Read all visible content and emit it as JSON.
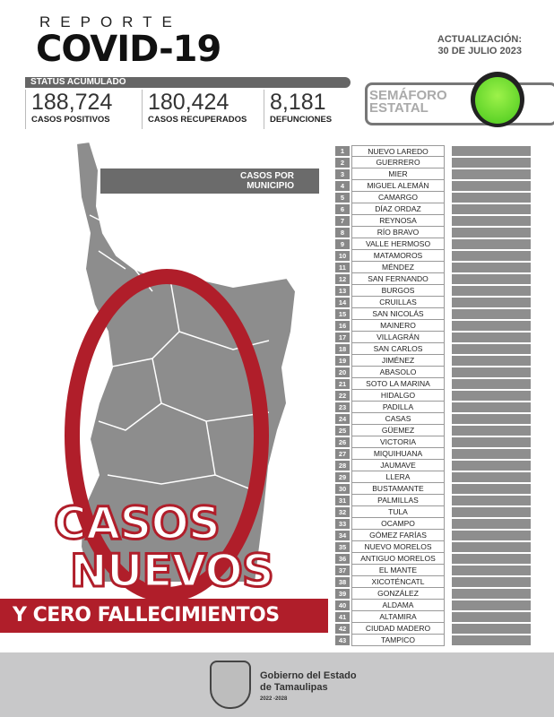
{
  "header": {
    "kicker": "REPORTE",
    "title": "COVID-19",
    "update_label": "ACTUALIZACIÓN:",
    "update_date": "30 DE JULIO 2023"
  },
  "status": {
    "label": "STATUS ACUMULADO",
    "stats": [
      {
        "value": "188,724",
        "label": "CASOS POSITIVOS"
      },
      {
        "value": "180,424",
        "label": "CASOS RECUPERADOS"
      },
      {
        "value": "8,181",
        "label": "DEFUNCIONES"
      }
    ]
  },
  "semaforo": {
    "line1": "SEMÁFORO",
    "line2": "ESTATAL",
    "color": "#5ad62a"
  },
  "map": {
    "heading1": "CASOS POR",
    "heading2": "MUNICIPIO"
  },
  "headline": {
    "number": "0",
    "line1": "CASOS",
    "line2": "NUEVOS",
    "band": "Y CERO FALLECIMIENTOS",
    "accent": "#b01e2a"
  },
  "municipios": [
    "NUEVO LAREDO",
    "GUERRERO",
    "MIER",
    "MIGUEL ALEMÁN",
    "CAMARGO",
    "DÍAZ ORDAZ",
    "REYNOSA",
    "RÍO BRAVO",
    "VALLE HERMOSO",
    "MATAMOROS",
    "MÉNDEZ",
    "SAN FERNANDO",
    "BURGOS",
    "CRUILLAS",
    "SAN NICOLÁS",
    "MAINERO",
    "VILLAGRÁN",
    "SAN CARLOS",
    "JIMÉNEZ",
    "ABASOLO",
    "SOTO LA MARINA",
    "HIDALGO",
    "PADILLA",
    "CASAS",
    "GÜEMEZ",
    "VICTORIA",
    "MIQUIHUANA",
    "JAUMAVE",
    "LLERA",
    "BUSTAMANTE",
    "PALMILLAS",
    "TULA",
    "OCAMPO",
    "GÓMEZ FARÍAS",
    "NUEVO MORELOS",
    "ANTIGUO MORELOS",
    "EL MANTE",
    "XICOTÉNCATL",
    "GONZÁLEZ",
    "ALDAMA",
    "ALTAMIRA",
    "CIUDAD MADERO",
    "TAMPICO"
  ],
  "footer": {
    "line1": "Gobierno del Estado",
    "line2": "de Tamaulipas",
    "years": "2022 -2028"
  }
}
